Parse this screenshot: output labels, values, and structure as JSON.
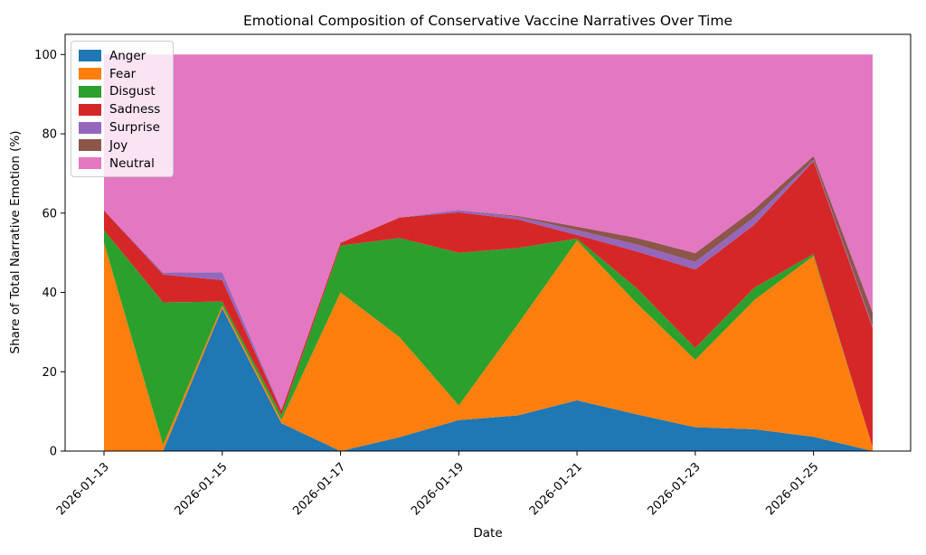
{
  "figure": {
    "title": "Emotional Composition of Conservative Vaccine Narratives Over Time",
    "xlabel": "Date",
    "ylabel": "Share of Total Narrative Emotion (%)"
  },
  "chart_data": {
    "type": "area",
    "stacked": true,
    "units": "percent",
    "title": "Emotional Composition of Conservative Vaccine Narratives Over Time",
    "xlabel": "Date",
    "ylabel": "Share of Total Narrative Emotion (%)",
    "ylim": [
      0,
      100
    ],
    "yticks": [
      0,
      20,
      40,
      60,
      80,
      100
    ],
    "grid": false,
    "legend_position": "upper left",
    "x": [
      "2026-01-13",
      "2026-01-14",
      "2026-01-15",
      "2026-01-16",
      "2026-01-17",
      "2026-01-18",
      "2026-01-19",
      "2026-01-20",
      "2026-01-21",
      "2026-01-22",
      "2026-01-23",
      "2026-01-24",
      "2026-01-25",
      "2026-01-26"
    ],
    "xtick_labels": [
      "2026-01-13",
      "2026-01-15",
      "2026-01-17",
      "2026-01-19",
      "2026-01-21",
      "2026-01-23",
      "2026-01-25"
    ],
    "series": [
      {
        "name": "Anger",
        "color": "#1f77b4",
        "values": [
          0,
          0,
          36,
          7,
          0,
          3.5,
          7.8,
          9,
          12.8,
          9.3,
          6,
          5.5,
          3.6,
          0
        ]
      },
      {
        "name": "Fear",
        "color": "#ff7f0e",
        "values": [
          52.5,
          1.5,
          0.7,
          0.8,
          40,
          25.2,
          3.7,
          23,
          40.3,
          28.1,
          17,
          32.6,
          45.6,
          1
        ]
      },
      {
        "name": "Disgust",
        "color": "#2ca02c",
        "values": [
          3.2,
          36,
          1,
          1.2,
          11.8,
          25,
          38.5,
          19.2,
          0.5,
          3.8,
          3,
          3.1,
          0.5,
          0
        ]
      },
      {
        "name": "Sadness",
        "color": "#d62728",
        "values": [
          5,
          7,
          5.4,
          1.2,
          0.7,
          5.2,
          10.2,
          7.2,
          0.9,
          9.2,
          19.8,
          15.9,
          23.4,
          30
        ]
      },
      {
        "name": "Surprise",
        "color": "#9467bd",
        "values": [
          0,
          0.5,
          2,
          0.3,
          0,
          0,
          0.6,
          0.6,
          1.2,
          1.7,
          1.9,
          1.9,
          0.3,
          0.5
        ]
      },
      {
        "name": "Joy",
        "color": "#8c564b",
        "values": [
          0,
          0,
          0,
          0,
          0,
          0,
          0,
          0.3,
          0.9,
          1.7,
          2.2,
          2,
          1,
          3.5
        ]
      },
      {
        "name": "Neutral",
        "color": "#e377c2",
        "values": [
          39.3,
          55,
          54.9,
          89.5,
          47.5,
          41.1,
          39.2,
          40.7,
          43.4,
          46.2,
          50.1,
          39,
          25.6,
          65
        ]
      }
    ]
  }
}
